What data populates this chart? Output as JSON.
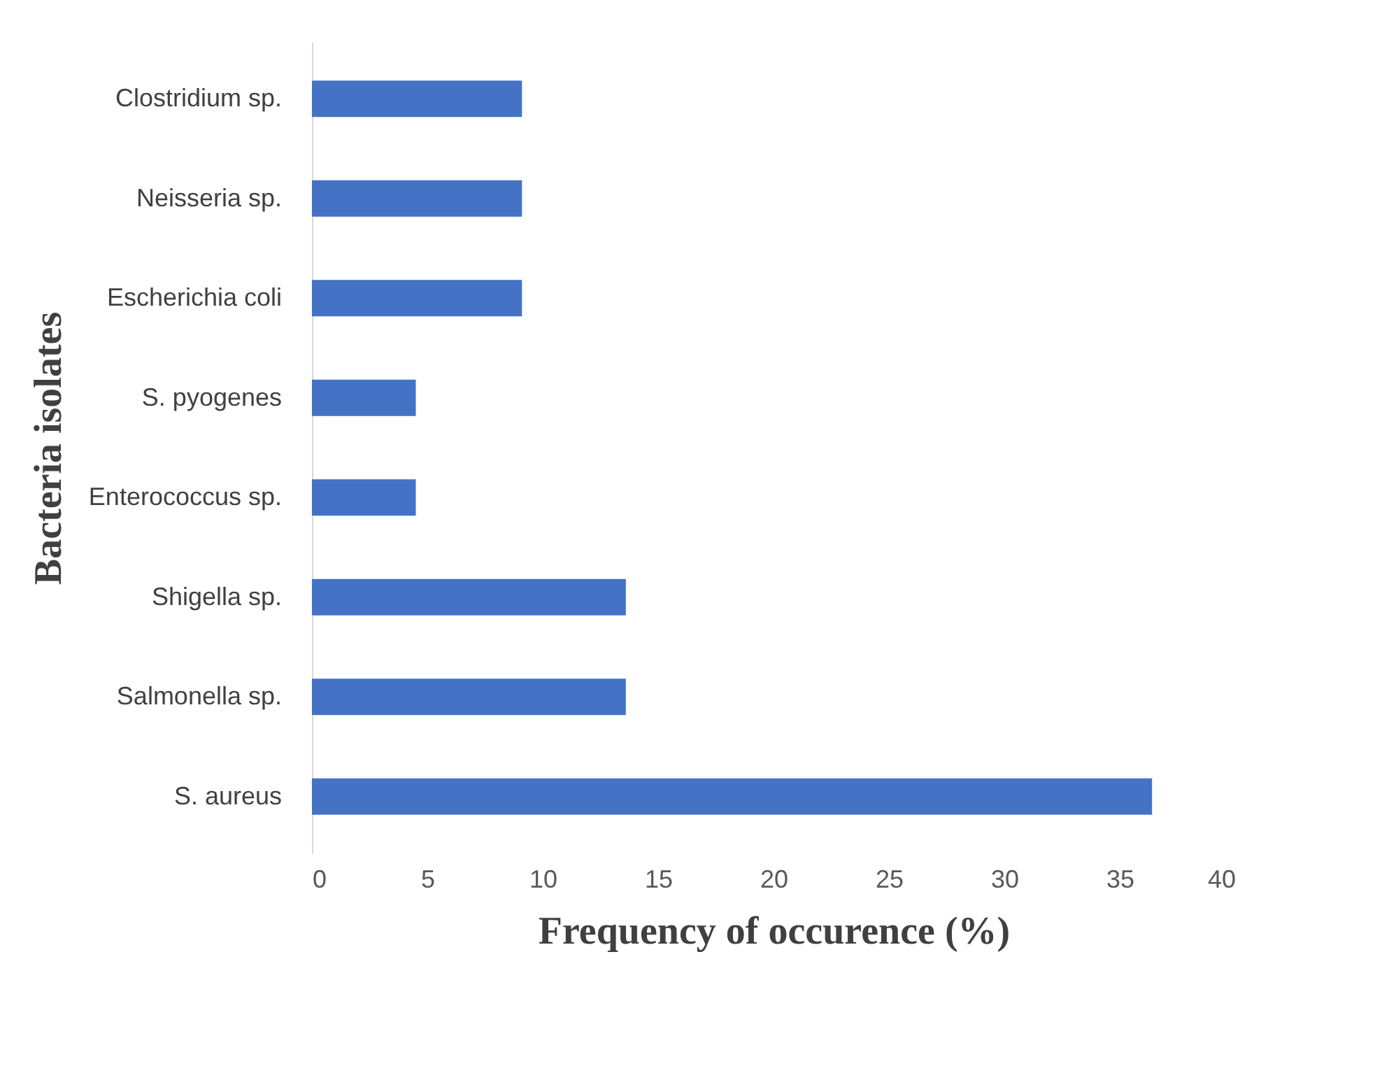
{
  "chart_data": {
    "type": "bar",
    "orientation": "horizontal",
    "xlabel": "Frequency of occurence (%)",
    "ylabel": "Bacteria isolates",
    "categories": [
      "Clostridium sp.",
      "Neisseria sp.",
      "Escherichia coli",
      "S. pyogenes",
      "Enterococcus sp.",
      "Shigella sp.",
      "Salmonella sp.",
      "S. aureus"
    ],
    "values": [
      9.1,
      9.1,
      9.1,
      4.5,
      4.5,
      13.6,
      13.6,
      36.4
    ],
    "color": "#4472c4",
    "xlim": [
      0,
      40
    ],
    "xticks": [
      0,
      5,
      10,
      15,
      20,
      25,
      30,
      35,
      40
    ],
    "grid": false
  }
}
